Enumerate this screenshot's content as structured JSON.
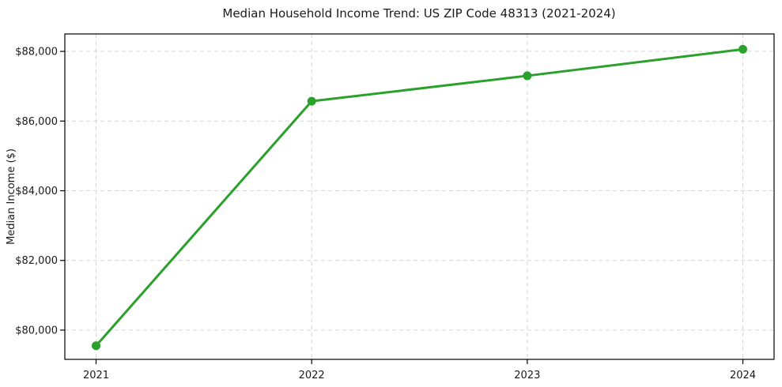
{
  "figure": {
    "background": "#ffffff"
  },
  "chart_data": {
    "type": "line",
    "title": "Median Household Income Trend: US ZIP Code 48313 (2021-2024)",
    "xlabel": "",
    "ylabel": "Median Income ($)",
    "categories": [
      "2021",
      "2022",
      "2023",
      "2024"
    ],
    "series": [
      {
        "name": "Median Household Income",
        "values": [
          79550,
          86570,
          87300,
          88060
        ],
        "color": "#2ca02c",
        "marker": "circle"
      }
    ],
    "ylim": [
      79160,
      88500
    ],
    "yticks": [
      80000,
      82000,
      84000,
      86000,
      88000
    ],
    "ytick_labels": [
      "$80,000",
      "$82,000",
      "$84,000",
      "$86,000",
      "$88,000"
    ],
    "xtick_labels": [
      "2021",
      "2022",
      "2023",
      "2024"
    ],
    "grid": true,
    "grid_style": "dashed",
    "grid_color": "#d4d4d4",
    "axis_color": "#000000",
    "text_color": "#1a1a1a",
    "legend_position": "none"
  }
}
